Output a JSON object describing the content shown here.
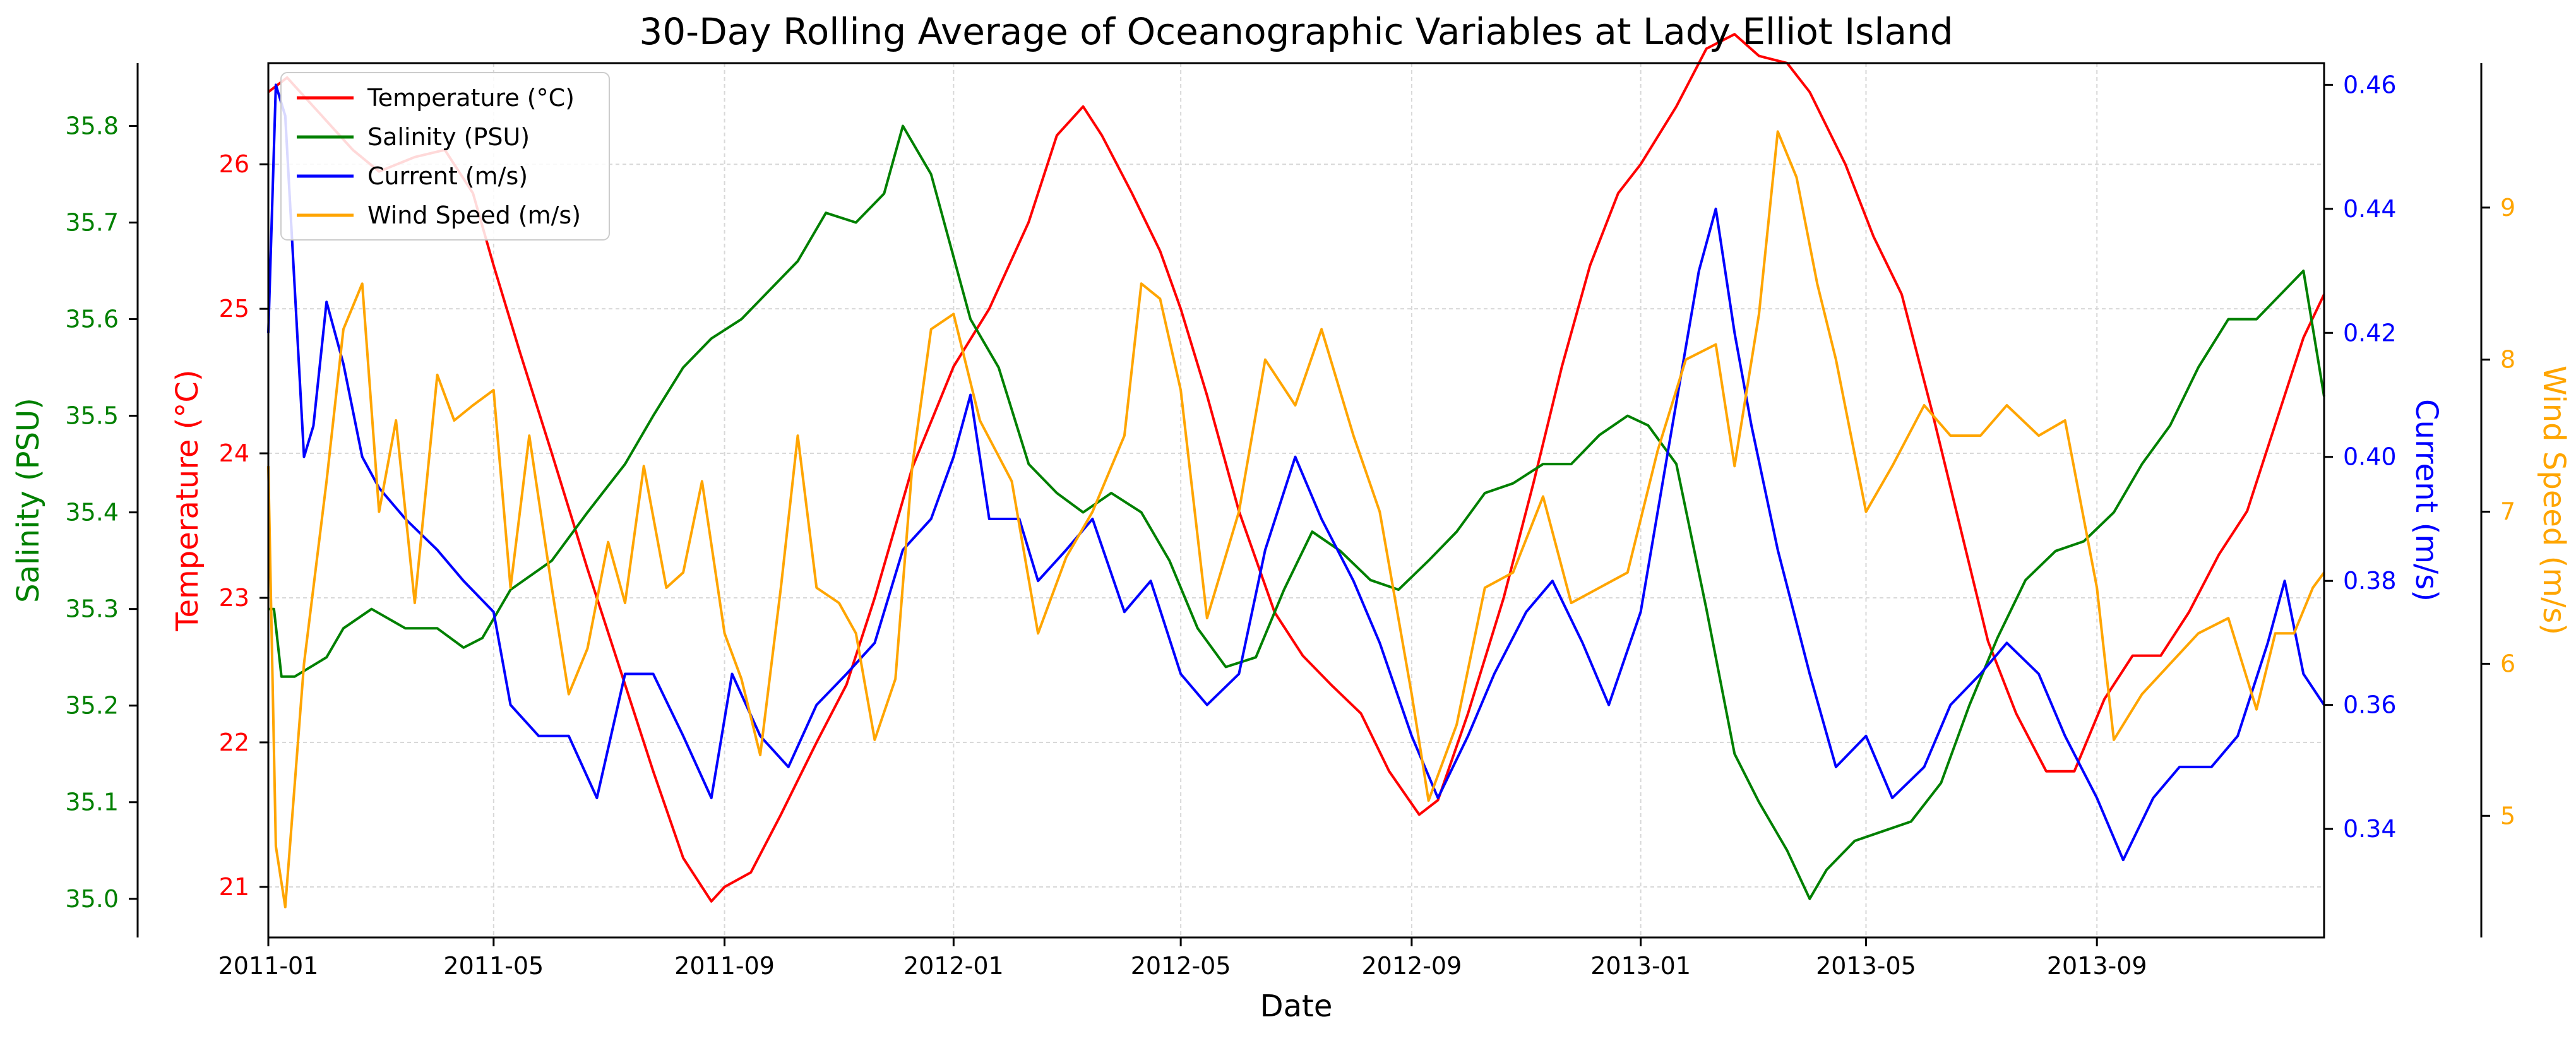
{
  "chart_data": {
    "type": "line",
    "title": "30-Day Rolling Average of Oceanographic Variables at Lady Elliot Island",
    "xlabel": "Date",
    "x_start": "2011-01-01",
    "x_end": "2013-12-31",
    "x_ticks": [
      "2011-01",
      "2011-05",
      "2011-09",
      "2012-01",
      "2012-05",
      "2012-09",
      "2013-01",
      "2013-05",
      "2013-09"
    ],
    "grid": true,
    "legend_position": "top-left",
    "axes": [
      {
        "id": "temperature",
        "label": "Temperature (°C)",
        "side": "left-inner",
        "color": "#ff0000",
        "range": [
          20.65,
          26.7
        ],
        "ticks": [
          "21",
          "22",
          "23",
          "24",
          "25",
          "26"
        ]
      },
      {
        "id": "salinity",
        "label": "Salinity (PSU)",
        "side": "left-outer",
        "color": "#008000",
        "range": [
          34.96,
          35.865
        ],
        "ticks": [
          "35.0",
          "35.1",
          "35.2",
          "35.3",
          "35.4",
          "35.5",
          "35.6",
          "35.7",
          "35.8"
        ]
      },
      {
        "id": "current",
        "label": "Current (m/s)",
        "side": "right-inner",
        "color": "#0000ff",
        "range": [
          0.3225,
          0.4635
        ],
        "ticks": [
          "0.34",
          "0.36",
          "0.38",
          "0.40",
          "0.42",
          "0.44",
          "0.46"
        ]
      },
      {
        "id": "wind",
        "label": "Wind Speed (m/s)",
        "side": "right-outer",
        "color": "#ffa500",
        "range": [
          4.2,
          9.95
        ],
        "ticks": [
          "5",
          "6",
          "7",
          "8",
          "9"
        ]
      }
    ],
    "series": [
      {
        "name": "Temperature (°C)",
        "axis": "temperature",
        "color": "#ff0000",
        "x": [
          "2011-01-01",
          "2011-01-11",
          "2011-02-01",
          "2011-02-15",
          "2011-03-01",
          "2011-03-20",
          "2011-04-05",
          "2011-04-20",
          "2011-05-01",
          "2011-05-15",
          "2011-06-01",
          "2011-06-20",
          "2011-07-10",
          "2011-07-25",
          "2011-08-10",
          "2011-08-25",
          "2011-09-01",
          "2011-09-15",
          "2011-10-01",
          "2011-10-20",
          "2011-11-05",
          "2011-11-20",
          "2011-12-10",
          "2012-01-01",
          "2012-01-20",
          "2012-02-10",
          "2012-02-25",
          "2012-03-10",
          "2012-03-20",
          "2012-04-05",
          "2012-04-20",
          "2012-05-01",
          "2012-05-15",
          "2012-06-01",
          "2012-06-20",
          "2012-07-05",
          "2012-07-20",
          "2012-08-05",
          "2012-08-20",
          "2012-09-05",
          "2012-09-15",
          "2012-10-01",
          "2012-10-20",
          "2012-11-05",
          "2012-11-20",
          "2012-12-05",
          "2012-12-20",
          "2013-01-01",
          "2013-01-20",
          "2013-02-05",
          "2013-02-20",
          "2013-03-05",
          "2013-03-20",
          "2013-04-01",
          "2013-04-20",
          "2013-05-05",
          "2013-05-20",
          "2013-06-05",
          "2013-06-20",
          "2013-07-05",
          "2013-07-20",
          "2013-08-05",
          "2013-08-20",
          "2013-09-05",
          "2013-09-20",
          "2013-10-05",
          "2013-10-20",
          "2013-11-05",
          "2013-11-20",
          "2013-12-05",
          "2013-12-20",
          "2013-12-31"
        ],
        "y": [
          26.5,
          26.6,
          26.3,
          26.1,
          25.95,
          26.05,
          26.1,
          25.8,
          25.3,
          24.7,
          24.0,
          23.2,
          22.4,
          21.8,
          21.2,
          20.9,
          21.0,
          21.1,
          21.5,
          22.0,
          22.4,
          23.0,
          23.9,
          24.6,
          25.0,
          25.6,
          26.2,
          26.4,
          26.2,
          25.8,
          25.4,
          25.0,
          24.4,
          23.6,
          22.9,
          22.6,
          22.4,
          22.2,
          21.8,
          21.5,
          21.6,
          22.2,
          23.0,
          23.8,
          24.6,
          25.3,
          25.8,
          26.0,
          26.4,
          26.8,
          26.9,
          26.75,
          26.7,
          26.5,
          26.0,
          25.5,
          25.1,
          24.3,
          23.5,
          22.7,
          22.2,
          21.8,
          21.8,
          22.3,
          22.6,
          22.6,
          22.9,
          23.3,
          23.6,
          24.2,
          24.8,
          25.1
        ]
      },
      {
        "name": "Salinity (PSU)",
        "axis": "salinity",
        "color": "#008000",
        "x": [
          "2011-01-01",
          "2011-01-04",
          "2011-01-08",
          "2011-01-15",
          "2011-02-01",
          "2011-02-10",
          "2011-02-25",
          "2011-03-15",
          "2011-04-01",
          "2011-04-15",
          "2011-04-25",
          "2011-05-10",
          "2011-06-01",
          "2011-06-20",
          "2011-07-10",
          "2011-07-25",
          "2011-08-10",
          "2011-08-25",
          "2011-09-10",
          "2011-09-25",
          "2011-10-10",
          "2011-10-25",
          "2011-11-10",
          "2011-11-25",
          "2011-12-05",
          "2011-12-20",
          "2012-01-10",
          "2012-01-25",
          "2012-02-10",
          "2012-02-25",
          "2012-03-10",
          "2012-03-25",
          "2012-04-10",
          "2012-04-25",
          "2012-05-10",
          "2012-05-25",
          "2012-06-10",
          "2012-06-25",
          "2012-07-10",
          "2012-07-25",
          "2012-08-10",
          "2012-08-25",
          "2012-09-10",
          "2012-09-25",
          "2012-10-10",
          "2012-10-25",
          "2012-11-10",
          "2012-11-25",
          "2012-12-10",
          "2012-12-25",
          "2013-01-05",
          "2013-01-20",
          "2013-02-05",
          "2013-02-20",
          "2013-03-05",
          "2013-03-20",
          "2013-04-01",
          "2013-04-10",
          "2013-04-25",
          "2013-05-10",
          "2013-05-25",
          "2013-06-10",
          "2013-06-25",
          "2013-07-10",
          "2013-07-25",
          "2013-08-10",
          "2013-08-25",
          "2013-09-10",
          "2013-09-25",
          "2013-10-10",
          "2013-10-25",
          "2013-11-10",
          "2013-11-25",
          "2013-12-10",
          "2013-12-20",
          "2013-12-31"
        ],
        "y": [
          35.3,
          35.3,
          35.23,
          35.23,
          35.25,
          35.28,
          35.3,
          35.28,
          35.28,
          35.26,
          35.27,
          35.32,
          35.35,
          35.4,
          35.45,
          35.5,
          35.55,
          35.58,
          35.6,
          35.63,
          35.66,
          35.71,
          35.7,
          35.73,
          35.8,
          35.75,
          35.6,
          35.55,
          35.45,
          35.42,
          35.4,
          35.42,
          35.4,
          35.35,
          35.28,
          35.24,
          35.25,
          35.32,
          35.38,
          35.36,
          35.33,
          35.32,
          35.35,
          35.38,
          35.42,
          35.43,
          35.45,
          35.45,
          35.48,
          35.5,
          35.49,
          35.45,
          35.3,
          35.15,
          35.1,
          35.05,
          35.0,
          35.03,
          35.06,
          35.07,
          35.08,
          35.12,
          35.2,
          35.27,
          35.33,
          35.36,
          35.37,
          35.4,
          35.45,
          35.49,
          35.55,
          35.6,
          35.6,
          35.63,
          35.65,
          35.52
        ]
      },
      {
        "name": "Current (m/s)",
        "axis": "current",
        "color": "#0000ff",
        "x": [
          "2011-01-01",
          "2011-01-05",
          "2011-01-10",
          "2011-01-20",
          "2011-01-25",
          "2011-02-01",
          "2011-02-10",
          "2011-02-20",
          "2011-03-01",
          "2011-03-15",
          "2011-04-01",
          "2011-04-15",
          "2011-05-01",
          "2011-05-10",
          "2011-05-25",
          "2011-06-10",
          "2011-06-25",
          "2011-07-10",
          "2011-07-25",
          "2011-08-10",
          "2011-08-25",
          "2011-09-05",
          "2011-09-20",
          "2011-10-05",
          "2011-10-20",
          "2011-11-05",
          "2011-11-20",
          "2011-12-05",
          "2011-12-20",
          "2012-01-01",
          "2012-01-10",
          "2012-01-20",
          "2012-02-05",
          "2012-02-15",
          "2012-03-01",
          "2012-03-15",
          "2012-04-01",
          "2012-04-15",
          "2012-05-01",
          "2012-05-15",
          "2012-06-01",
          "2012-06-15",
          "2012-07-01",
          "2012-07-15",
          "2012-08-01",
          "2012-08-15",
          "2012-09-01",
          "2012-09-15",
          "2012-10-01",
          "2012-10-15",
          "2012-11-01",
          "2012-11-15",
          "2012-12-01",
          "2012-12-15",
          "2013-01-01",
          "2013-01-15",
          "2013-02-01",
          "2013-02-10",
          "2013-02-20",
          "2013-03-01",
          "2013-03-15",
          "2013-04-01",
          "2013-04-15",
          "2013-05-01",
          "2013-05-15",
          "2013-06-01",
          "2013-06-15",
          "2013-07-01",
          "2013-07-15",
          "2013-08-01",
          "2013-08-15",
          "2013-09-01",
          "2013-09-15",
          "2013-10-01",
          "2013-10-15",
          "2013-11-01",
          "2013-11-15",
          "2013-12-01",
          "2013-12-10",
          "2013-12-20",
          "2013-12-31"
        ],
        "y": [
          0.42,
          0.46,
          0.455,
          0.4,
          0.405,
          0.425,
          0.415,
          0.4,
          0.395,
          0.39,
          0.385,
          0.38,
          0.375,
          0.36,
          0.355,
          0.355,
          0.345,
          0.365,
          0.365,
          0.355,
          0.345,
          0.365,
          0.355,
          0.35,
          0.36,
          0.365,
          0.37,
          0.385,
          0.39,
          0.4,
          0.41,
          0.39,
          0.39,
          0.38,
          0.385,
          0.39,
          0.375,
          0.38,
          0.365,
          0.36,
          0.365,
          0.385,
          0.4,
          0.39,
          0.38,
          0.37,
          0.355,
          0.345,
          0.355,
          0.365,
          0.375,
          0.38,
          0.37,
          0.36,
          0.375,
          0.4,
          0.43,
          0.44,
          0.42,
          0.405,
          0.385,
          0.365,
          0.35,
          0.355,
          0.345,
          0.35,
          0.36,
          0.365,
          0.37,
          0.365,
          0.355,
          0.345,
          0.335,
          0.345,
          0.35,
          0.35,
          0.355,
          0.37,
          0.38,
          0.365,
          0.36
        ]
      },
      {
        "name": "Wind Speed (m/s)",
        "axis": "wind",
        "color": "#ffa500",
        "x": [
          "2011-01-01",
          "2011-01-05",
          "2011-01-10",
          "2011-01-20",
          "2011-02-01",
          "2011-02-10",
          "2011-02-20",
          "2011-03-01",
          "2011-03-10",
          "2011-03-20",
          "2011-04-01",
          "2011-04-10",
          "2011-04-20",
          "2011-05-01",
          "2011-05-10",
          "2011-05-20",
          "2011-06-01",
          "2011-06-10",
          "2011-06-20",
          "2011-07-01",
          "2011-07-10",
          "2011-07-20",
          "2011-08-01",
          "2011-08-10",
          "2011-08-20",
          "2011-09-01",
          "2011-09-10",
          "2011-09-20",
          "2011-10-01",
          "2011-10-10",
          "2011-10-20",
          "2011-11-01",
          "2011-11-10",
          "2011-11-20",
          "2011-12-01",
          "2011-12-10",
          "2011-12-20",
          "2012-01-01",
          "2012-01-15",
          "2012-02-01",
          "2012-02-15",
          "2012-03-01",
          "2012-03-15",
          "2012-04-01",
          "2012-04-10",
          "2012-04-20",
          "2012-05-01",
          "2012-05-15",
          "2012-06-01",
          "2012-06-15",
          "2012-07-01",
          "2012-07-15",
          "2012-08-01",
          "2012-08-15",
          "2012-09-01",
          "2012-09-10",
          "2012-09-25",
          "2012-10-10",
          "2012-10-25",
          "2012-11-10",
          "2012-11-25",
          "2012-12-10",
          "2012-12-25",
          "2013-01-10",
          "2013-01-25",
          "2013-02-10",
          "2013-02-20",
          "2013-03-05",
          "2013-03-15",
          "2013-03-25",
          "2013-04-05",
          "2013-04-15",
          "2013-05-01",
          "2013-05-15",
          "2013-06-01",
          "2013-06-15",
          "2013-07-01",
          "2013-07-15",
          "2013-08-01",
          "2013-08-15",
          "2013-09-01",
          "2013-09-10",
          "2013-09-25",
          "2013-10-10",
          "2013-10-25",
          "2013-11-10",
          "2013-11-25",
          "2013-12-05",
          "2013-12-15",
          "2013-12-25",
          "2013-12-31"
        ],
        "y": [
          7.3,
          4.8,
          4.4,
          6.0,
          7.2,
          8.2,
          8.5,
          7.0,
          7.6,
          6.4,
          7.9,
          7.6,
          7.7,
          7.8,
          6.5,
          7.5,
          6.5,
          5.8,
          6.1,
          6.8,
          6.4,
          7.3,
          6.5,
          6.6,
          7.2,
          6.2,
          5.9,
          5.4,
          6.5,
          7.5,
          6.5,
          6.4,
          6.2,
          5.5,
          5.9,
          7.3,
          8.2,
          8.3,
          7.6,
          7.2,
          6.2,
          6.7,
          7.0,
          7.5,
          8.5,
          8.4,
          7.8,
          6.3,
          7.0,
          8.0,
          7.7,
          8.2,
          7.5,
          7.0,
          5.8,
          5.1,
          5.6,
          6.5,
          6.6,
          7.1,
          6.4,
          6.5,
          6.6,
          7.4,
          8.0,
          8.1,
          7.3,
          8.3,
          9.5,
          9.2,
          8.5,
          8.0,
          7.0,
          7.3,
          7.7,
          7.5,
          7.5,
          7.7,
          7.5,
          7.6,
          6.5,
          5.5,
          5.8,
          6.0,
          6.2,
          6.3,
          5.7,
          6.2,
          6.2,
          6.5,
          6.6
        ]
      }
    ]
  }
}
